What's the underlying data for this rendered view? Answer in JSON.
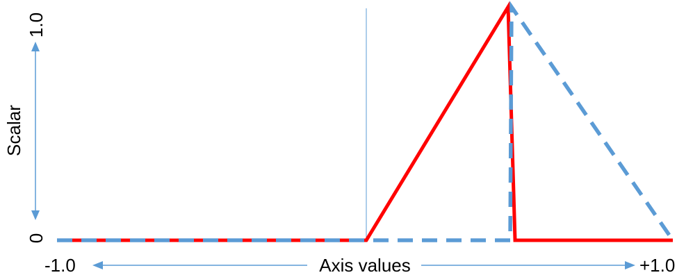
{
  "labels": {
    "y_axis": "Scalar",
    "y_top": "1.0",
    "y_bottom": "0",
    "x_axis": "Axis values",
    "x_left": "-1.0",
    "x_right": "+1.0"
  },
  "colors": {
    "red_line": "#ff0000",
    "blue_dashed": "#5b9bd5",
    "axis_arrows": "#5b9bd5"
  },
  "curves": {
    "red_solid": [
      [
        -1.0,
        0
      ],
      [
        0.0,
        0
      ],
      [
        0.46,
        1.0
      ],
      [
        0.48,
        0
      ],
      [
        1.0,
        0
      ]
    ],
    "blue_dashed": [
      [
        -1.0,
        0
      ],
      [
        0.0,
        0
      ],
      [
        0.47,
        0
      ],
      [
        0.47,
        1.0
      ],
      [
        1.0,
        0
      ]
    ]
  }
}
